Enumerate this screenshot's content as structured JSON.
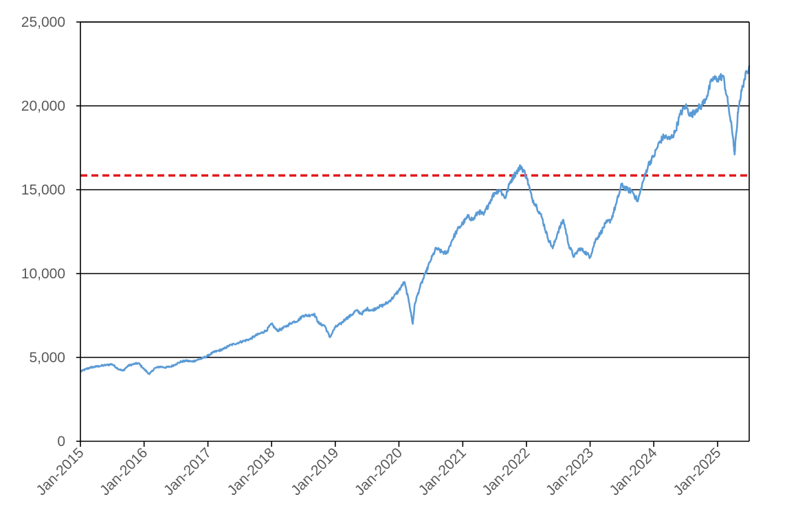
{
  "chart_data": {
    "type": "line",
    "title": "",
    "xlabel": "",
    "ylabel": "",
    "ylim": [
      0,
      25000
    ],
    "yticks": [
      0,
      5000,
      10000,
      15000,
      20000,
      25000
    ],
    "ytick_labels": [
      "0",
      "5,000",
      "10,000",
      "15,000",
      "20,000",
      "25,000"
    ],
    "xlim": [
      "2015-01-01",
      "2025-07-01"
    ],
    "xticks": [
      "2015-01-01",
      "2016-01-01",
      "2017-01-01",
      "2018-01-01",
      "2019-01-01",
      "2020-01-01",
      "2021-01-01",
      "2022-01-01",
      "2023-01-01",
      "2024-01-01",
      "2025-01-01"
    ],
    "xtick_labels": [
      "Jan-2015",
      "Jan-2016",
      "Jan-2017",
      "Jan-2018",
      "Jan-2019",
      "Jan-2020",
      "Jan-2021",
      "Jan-2022",
      "Jan-2023",
      "Jan-2024",
      "Jan-2025"
    ],
    "grid": "horizontal",
    "legend": "none",
    "colors": {
      "series": "#5B9BD5",
      "reference": "#E31A1C",
      "grid": "#000000",
      "axis": "#000000",
      "text": "#595959"
    },
    "reference_line": {
      "y": 15850,
      "style": "dashed"
    },
    "series": [
      {
        "x": [
          "2015-01-01",
          "2015-02-01",
          "2015-03-01",
          "2015-04-01",
          "2015-05-01",
          "2015-06-01",
          "2015-07-01",
          "2015-08-01",
          "2015-09-01",
          "2015-10-01",
          "2015-11-01",
          "2015-12-01",
          "2016-01-01",
          "2016-02-01",
          "2016-03-01",
          "2016-04-01",
          "2016-05-01",
          "2016-06-01",
          "2016-07-01",
          "2016-08-01",
          "2016-09-01",
          "2016-10-01",
          "2016-11-01",
          "2016-12-01",
          "2017-01-01",
          "2017-02-01",
          "2017-03-01",
          "2017-04-01",
          "2017-05-01",
          "2017-06-01",
          "2017-07-01",
          "2017-08-01",
          "2017-09-01",
          "2017-10-01",
          "2017-11-01",
          "2017-12-01",
          "2018-01-01",
          "2018-02-01",
          "2018-03-01",
          "2018-04-01",
          "2018-05-01",
          "2018-06-01",
          "2018-07-01",
          "2018-08-01",
          "2018-09-01",
          "2018-10-01",
          "2018-11-01",
          "2018-12-01",
          "2019-01-01",
          "2019-02-01",
          "2019-03-01",
          "2019-04-01",
          "2019-05-01",
          "2019-06-01",
          "2019-07-01",
          "2019-08-01",
          "2019-09-01",
          "2019-10-01",
          "2019-11-01",
          "2019-12-01",
          "2020-01-01",
          "2020-02-01",
          "2020-03-01",
          "2020-03-20",
          "2020-04-01",
          "2020-05-01",
          "2020-06-01",
          "2020-07-01",
          "2020-08-01",
          "2020-09-01",
          "2020-10-01",
          "2020-11-01",
          "2020-12-01",
          "2021-01-01",
          "2021-02-01",
          "2021-03-01",
          "2021-04-01",
          "2021-05-01",
          "2021-06-01",
          "2021-07-01",
          "2021-08-01",
          "2021-09-01",
          "2021-10-01",
          "2021-11-01",
          "2021-12-01",
          "2022-01-01",
          "2022-02-01",
          "2022-03-01",
          "2022-04-01",
          "2022-05-01",
          "2022-06-01",
          "2022-07-01",
          "2022-08-01",
          "2022-09-01",
          "2022-10-01",
          "2022-11-01",
          "2022-12-01",
          "2023-01-01",
          "2023-02-01",
          "2023-03-01",
          "2023-04-01",
          "2023-05-01",
          "2023-06-01",
          "2023-07-01",
          "2023-08-01",
          "2023-09-01",
          "2023-10-01",
          "2023-11-01",
          "2023-12-01",
          "2024-01-01",
          "2024-02-01",
          "2024-03-01",
          "2024-04-01",
          "2024-05-01",
          "2024-06-01",
          "2024-07-01",
          "2024-08-01",
          "2024-09-01",
          "2024-10-01",
          "2024-11-01",
          "2024-12-01",
          "2025-01-01",
          "2025-02-01",
          "2025-03-01",
          "2025-04-01",
          "2025-04-08",
          "2025-05-01",
          "2025-06-01",
          "2025-07-01"
        ],
        "values": [
          4150,
          4300,
          4400,
          4450,
          4500,
          4550,
          4600,
          4350,
          4200,
          4500,
          4600,
          4650,
          4300,
          4000,
          4350,
          4450,
          4400,
          4450,
          4600,
          4750,
          4800,
          4750,
          4850,
          4950,
          5100,
          5300,
          5400,
          5500,
          5700,
          5800,
          5900,
          6000,
          6100,
          6300,
          6450,
          6600,
          7000,
          6600,
          6700,
          6900,
          7100,
          7200,
          7500,
          7500,
          7600,
          7000,
          6900,
          6200,
          6800,
          7000,
          7300,
          7500,
          7800,
          7600,
          7900,
          7800,
          8000,
          8100,
          8300,
          8600,
          9000,
          9500,
          8200,
          7000,
          8200,
          9200,
          10000,
          10800,
          11500,
          11300,
          11200,
          12000,
          12600,
          13000,
          13400,
          13200,
          13700,
          13500,
          14200,
          14800,
          15000,
          14500,
          15500,
          16000,
          16400,
          15800,
          14500,
          14000,
          13300,
          12200,
          11500,
          12500,
          13200,
          11700,
          11000,
          11500,
          11300,
          11000,
          12000,
          12400,
          13000,
          13200,
          14200,
          15300,
          15000,
          14900,
          14300,
          15500,
          16500,
          17000,
          17800,
          18200,
          18000,
          18400,
          19500,
          20000,
          19400,
          19800,
          20000,
          20600,
          21600,
          21600,
          21800,
          20200,
          18000,
          17100,
          20000,
          21500,
          22400
        ]
      }
    ]
  }
}
